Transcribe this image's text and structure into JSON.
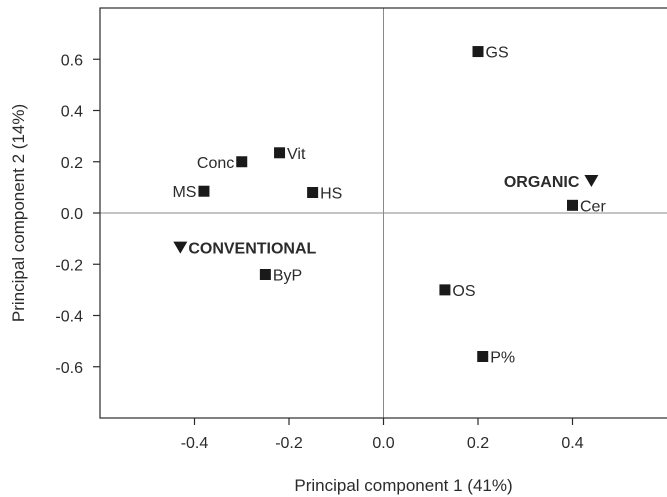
{
  "chart_data": {
    "type": "scatter",
    "title": "",
    "xlabel": "Principal component 1 (41%)",
    "ylabel": "Principal component 2 (14%)",
    "xlim": [
      -0.6,
      0.6
    ],
    "ylim": [
      -0.8,
      0.8
    ],
    "xticks": [
      -0.4,
      -0.2,
      0.0,
      0.2,
      0.4
    ],
    "yticks": [
      0.6,
      0.4,
      0.2,
      0.0,
      -0.2,
      -0.4,
      -0.6
    ],
    "xtick_labels": [
      "-0.4",
      "-0.2",
      "0.0",
      "0.2",
      "0.4"
    ],
    "ytick_labels": [
      "0.6",
      "0.4",
      "0.2",
      "0.0",
      "-0.2",
      "-0.4",
      "-0.6"
    ],
    "grid": false,
    "reference_lines": {
      "x": 0,
      "y": 0
    },
    "points": [
      {
        "label": "GS",
        "x": 0.2,
        "y": 0.63,
        "marker": "square",
        "label_side": "right"
      },
      {
        "label": "Vit",
        "x": -0.22,
        "y": 0.235,
        "marker": "square",
        "label_side": "right"
      },
      {
        "label": "Conc",
        "x": -0.3,
        "y": 0.2,
        "marker": "square",
        "label_side": "left"
      },
      {
        "label": "MS",
        "x": -0.38,
        "y": 0.085,
        "marker": "square",
        "label_side": "left"
      },
      {
        "label": "HS",
        "x": -0.15,
        "y": 0.08,
        "marker": "square",
        "label_side": "right"
      },
      {
        "label": "Cer",
        "x": 0.4,
        "y": 0.03,
        "marker": "square",
        "label_side": "right"
      },
      {
        "label": "ByP",
        "x": -0.25,
        "y": -0.24,
        "marker": "square",
        "label_side": "right"
      },
      {
        "label": "OS",
        "x": 0.13,
        "y": -0.3,
        "marker": "square",
        "label_side": "right"
      },
      {
        "label": "P%",
        "x": 0.21,
        "y": -0.56,
        "marker": "square",
        "label_side": "right"
      }
    ],
    "groups": [
      {
        "label": "ORGANIC",
        "x": 0.44,
        "y": 0.125,
        "marker": "triangle-down",
        "label_side": "left"
      },
      {
        "label": "CONVENTIONAL",
        "x": -0.43,
        "y": -0.135,
        "marker": "triangle-down",
        "label_side": "right"
      }
    ],
    "colors": {
      "marker": "#1a1a1a",
      "axis": "#2b2b2b",
      "reference": "#8a8a8a"
    }
  }
}
